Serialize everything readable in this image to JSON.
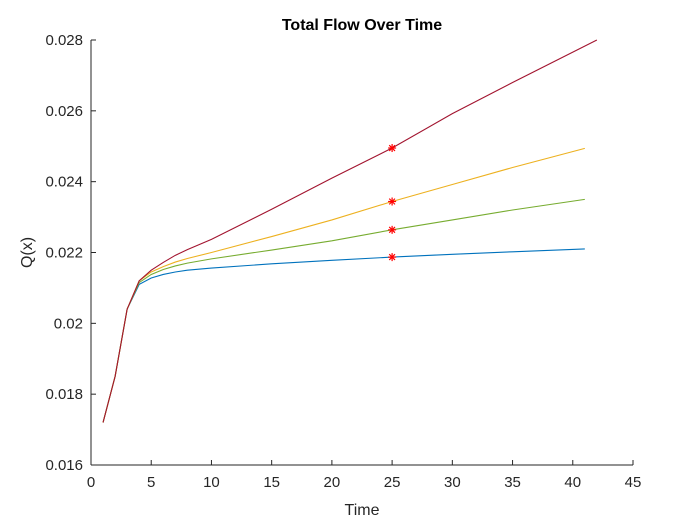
{
  "chart_data": {
    "type": "line",
    "title": "Total Flow Over Time",
    "xlabel": "Time",
    "ylabel": "Q(x)",
    "xlim": [
      0,
      45
    ],
    "ylim": [
      0.016,
      0.028
    ],
    "xticks": [
      0,
      5,
      10,
      15,
      20,
      25,
      30,
      35,
      40,
      45
    ],
    "yticks": [
      0.016,
      0.018,
      0.02,
      0.022,
      0.024,
      0.026,
      0.028
    ],
    "xtick_labels": [
      "0",
      "5",
      "10",
      "15",
      "20",
      "25",
      "30",
      "35",
      "40",
      "45"
    ],
    "ytick_labels": [
      "0.016",
      "0.018",
      "0.02",
      "0.022",
      "0.024",
      "0.026",
      "0.028"
    ],
    "grid": false,
    "box": "left-bottom",
    "series": [
      {
        "color": "#0072BD",
        "x": [
          1,
          2,
          3,
          4,
          5,
          6,
          7,
          8,
          10,
          15,
          20,
          25,
          30,
          35,
          41
        ],
        "y": [
          0.0172,
          0.0185,
          0.0204,
          0.0211,
          0.02128,
          0.02138,
          0.02145,
          0.0215,
          0.02156,
          0.02168,
          0.02178,
          0.02187,
          0.02195,
          0.02202,
          0.0221
        ]
      },
      {
        "color": "#77AC30",
        "x": [
          1,
          2,
          3,
          4,
          5,
          6,
          7,
          8,
          10,
          15,
          20,
          25,
          30,
          35,
          41
        ],
        "y": [
          0.0172,
          0.0185,
          0.0204,
          0.02115,
          0.02138,
          0.02152,
          0.02162,
          0.0217,
          0.02182,
          0.02207,
          0.02233,
          0.02264,
          0.02292,
          0.0232,
          0.0235
        ]
      },
      {
        "color": "#EDB120",
        "x": [
          1,
          2,
          3,
          4,
          5,
          6,
          7,
          8,
          10,
          15,
          20,
          25,
          30,
          35,
          41
        ],
        "y": [
          0.0172,
          0.0185,
          0.0204,
          0.0212,
          0.02145,
          0.0216,
          0.02173,
          0.02183,
          0.022,
          0.02245,
          0.02292,
          0.02344,
          0.02392,
          0.0244,
          0.02494
        ]
      },
      {
        "color": "#A2142F",
        "x": [
          1,
          2,
          3,
          4,
          5,
          6,
          7,
          8,
          10,
          15,
          20,
          25,
          30,
          35,
          42
        ],
        "y": [
          0.0172,
          0.0185,
          0.0204,
          0.0212,
          0.0215,
          0.02172,
          0.02192,
          0.02208,
          0.02237,
          0.02322,
          0.0241,
          0.02495,
          0.02592,
          0.0268,
          0.028
        ]
      }
    ],
    "markers": {
      "symbol": "asterisk",
      "color": "#FF0000",
      "points": [
        {
          "x": 25,
          "y": 0.02495
        },
        {
          "x": 25,
          "y": 0.02344
        },
        {
          "x": 25,
          "y": 0.02264
        },
        {
          "x": 25,
          "y": 0.02187
        }
      ]
    }
  }
}
